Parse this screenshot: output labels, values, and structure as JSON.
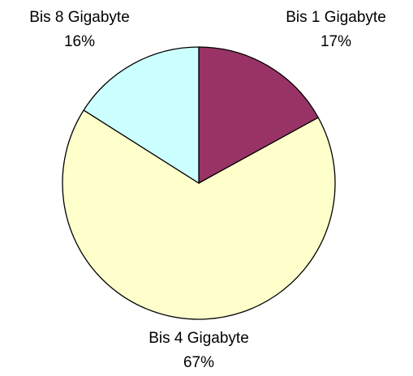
{
  "chart_data": {
    "type": "pie",
    "categories": [
      "Bis 1 Gigabyte",
      "Bis 4 Gigabyte",
      "Bis 8 Gigabyte"
    ],
    "values": [
      17,
      67,
      16
    ],
    "value_labels": [
      "17%",
      "67%",
      "16%"
    ],
    "colors": [
      "#993366",
      "#ffffcc",
      "#ccffff"
    ]
  }
}
